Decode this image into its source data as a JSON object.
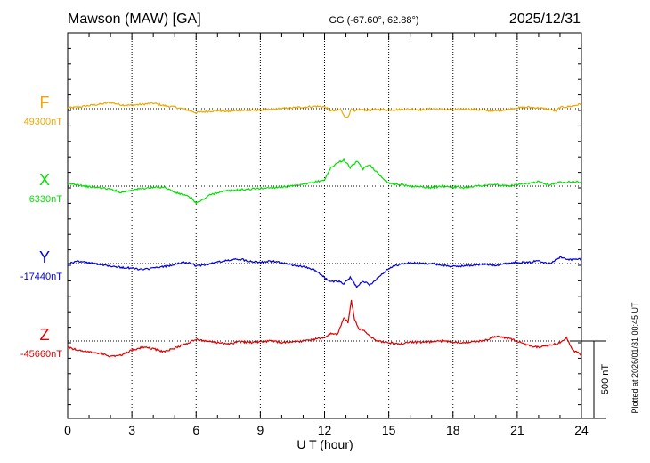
{
  "header": {
    "station": "Mawson (MAW)  [GA]",
    "coords": "GG (-67.60°,  62.88°)",
    "date": "2025/12/31"
  },
  "plotted_note": "Plotted at 2026/01/31 00:45 UT",
  "chart_data": {
    "type": "line",
    "xlabel": "U T (hour)",
    "xlim": [
      0,
      24
    ],
    "xticks": [
      "0",
      "3",
      "6",
      "9",
      "12",
      "15",
      "18",
      "21",
      "24"
    ],
    "grid": "dotted vertical every 3 h, dotted baseline per trace",
    "scale_bar": {
      "value": 500,
      "label": "500 nT"
    },
    "series": [
      {
        "name": "F",
        "baseline_label": "49300nT",
        "baseline": 49300,
        "color": "#f0a800",
        "x": [
          0,
          0.5,
          1,
          1.5,
          2,
          2.5,
          3,
          3.5,
          4,
          4.5,
          5,
          5.5,
          6,
          6.5,
          7,
          7.5,
          8,
          8.5,
          9,
          9.5,
          10,
          10.5,
          11,
          11.5,
          12,
          12.25,
          12.5,
          12.75,
          13,
          13.1,
          13.25,
          13.4,
          13.6,
          14,
          14.5,
          15,
          15.5,
          16,
          16.5,
          17,
          17.5,
          18,
          18.5,
          19,
          19.5,
          20,
          20.5,
          21,
          21.5,
          22,
          22.5,
          22.8,
          23,
          23.5,
          24
        ],
        "values": [
          5,
          10,
          20,
          28,
          40,
          25,
          22,
          28,
          35,
          20,
          10,
          -5,
          -25,
          -18,
          -12,
          -18,
          -10,
          -12,
          -8,
          -5,
          0,
          5,
          10,
          15,
          12,
          -10,
          -15,
          -5,
          -60,
          -50,
          -5,
          -20,
          -5,
          -10,
          -5,
          -8,
          -5,
          -2,
          -8,
          0,
          -5,
          -8,
          -2,
          -5,
          -12,
          -15,
          -5,
          5,
          10,
          5,
          -5,
          -15,
          8,
          15,
          30
        ]
      },
      {
        "name": "X",
        "baseline_label": "6330nT",
        "baseline": 6330,
        "color": "#00e000",
        "x": [
          0,
          0.5,
          1,
          1.5,
          2,
          2.5,
          3,
          3.5,
          4,
          4.5,
          5,
          5.5,
          5.8,
          6,
          6.3,
          6.6,
          7,
          7.5,
          8,
          8.5,
          9,
          9.5,
          10,
          10.5,
          11,
          11.5,
          12,
          12.3,
          12.6,
          12.9,
          13.2,
          13.5,
          13.8,
          14.1,
          14.5,
          15,
          15.5,
          16,
          16.5,
          17,
          17.5,
          18,
          18.5,
          19,
          19.5,
          20,
          20.5,
          21,
          21.5,
          22,
          22.5,
          23,
          23.5,
          24
        ],
        "values": [
          15,
          10,
          -5,
          -10,
          -20,
          -40,
          -25,
          -15,
          -10,
          -5,
          -40,
          -60,
          -80,
          -110,
          -90,
          -60,
          -40,
          -30,
          -25,
          -20,
          -15,
          -10,
          -5,
          0,
          10,
          25,
          40,
          120,
          150,
          170,
          120,
          160,
          110,
          140,
          80,
          20,
          10,
          0,
          -5,
          -10,
          0,
          -5,
          -10,
          0,
          5,
          10,
          0,
          10,
          15,
          30,
          10,
          25,
          30,
          25
        ]
      },
      {
        "name": "Y",
        "baseline_label": "-17440nT",
        "baseline": -17440,
        "color": "#0000e0",
        "x": [
          0,
          0.5,
          1,
          1.5,
          2,
          2.5,
          3,
          3.5,
          4,
          4.5,
          5,
          5.5,
          6,
          6.5,
          7,
          7.5,
          8,
          8.5,
          9,
          9.5,
          10,
          10.5,
          11,
          11.5,
          12,
          12.3,
          12.6,
          12.9,
          13.2,
          13.5,
          13.8,
          14.1,
          14.5,
          15,
          15.5,
          16,
          16.5,
          17,
          17.5,
          18,
          18.5,
          19,
          19.5,
          20,
          20.5,
          21,
          21.5,
          22,
          22.5,
          23,
          23.5,
          24
        ],
        "values": [
          0,
          15,
          5,
          -5,
          -15,
          -25,
          -30,
          -40,
          -30,
          -20,
          -5,
          10,
          -15,
          -5,
          10,
          20,
          30,
          15,
          10,
          15,
          5,
          -10,
          -20,
          -40,
          -90,
          -120,
          -110,
          -130,
          -90,
          -150,
          -110,
          -140,
          -90,
          -30,
          -5,
          5,
          0,
          0,
          -10,
          -20,
          -15,
          -10,
          -5,
          -10,
          0,
          10,
          5,
          20,
          0,
          40,
          25,
          30
        ]
      },
      {
        "name": "Z",
        "baseline_label": "-45660nT",
        "baseline": -45660,
        "color": "#e00000",
        "x": [
          0,
          0.5,
          1,
          1.5,
          2,
          2.5,
          3,
          3.5,
          4,
          4.5,
          5,
          5.5,
          6,
          6.5,
          7,
          7.5,
          8,
          8.5,
          9,
          9.5,
          10,
          10.5,
          11,
          11.5,
          12,
          12.3,
          12.6,
          12.9,
          13.1,
          13.25,
          13.4,
          13.6,
          13.9,
          14.2,
          14.5,
          15,
          15.5,
          16,
          16.5,
          17,
          17.5,
          18,
          18.5,
          19,
          19.5,
          20,
          20.5,
          21,
          21.5,
          22,
          22.5,
          23,
          23.3,
          23.6,
          24
        ],
        "values": [
          -40,
          -60,
          -70,
          -80,
          -100,
          -90,
          -60,
          -40,
          -50,
          -70,
          -45,
          -20,
          10,
          0,
          -10,
          -20,
          -5,
          -10,
          -5,
          0,
          -10,
          -5,
          0,
          10,
          25,
          50,
          40,
          150,
          120,
          260,
          140,
          80,
          60,
          20,
          0,
          -10,
          -20,
          -5,
          -10,
          -5,
          0,
          -5,
          -10,
          -5,
          5,
          30,
          20,
          0,
          -30,
          -40,
          -30,
          -10,
          20,
          -60,
          -90
        ]
      }
    ]
  }
}
